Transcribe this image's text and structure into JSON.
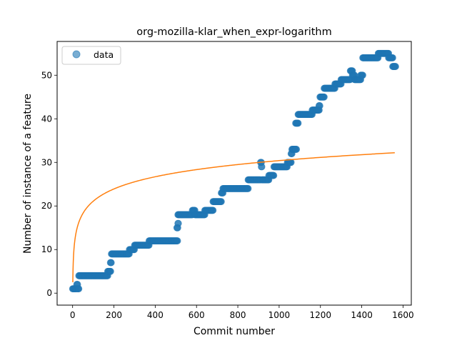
{
  "chart_data": {
    "type": "scatter",
    "title": "org-mozilla-klar_when_expr-logarithm",
    "xlabel": "Commit number",
    "ylabel": "Number of instance of a feature",
    "xlim": [
      -75,
      1640
    ],
    "ylim": [
      -2.75,
      57.75
    ],
    "xticks": [
      0,
      200,
      400,
      600,
      800,
      1000,
      1200,
      1400,
      1600
    ],
    "yticks": [
      0,
      10,
      20,
      30,
      40,
      50
    ],
    "grid": false,
    "legend": {
      "placement": "top-left",
      "entries": [
        "data"
      ]
    },
    "colors": {
      "data": "#1f77b4",
      "fit": "#ff7f0e"
    },
    "series": [
      {
        "name": "data",
        "kind": "scatter",
        "steps": [
          [
            0,
            18,
            1
          ],
          [
            20,
            24,
            2
          ],
          [
            24,
            30,
            1
          ],
          [
            30,
            170,
            4
          ],
          [
            170,
            185,
            5
          ],
          [
            183,
            188,
            7
          ],
          [
            188,
            275,
            9
          ],
          [
            275,
            300,
            10
          ],
          [
            300,
            370,
            11
          ],
          [
            370,
            508,
            12
          ],
          [
            505,
            509,
            15
          ],
          [
            510,
            512,
            16
          ],
          [
            510,
            580,
            18
          ],
          [
            580,
            592,
            19
          ],
          [
            592,
            640,
            18
          ],
          [
            640,
            680,
            19
          ],
          [
            680,
            720,
            21
          ],
          [
            720,
            728,
            23
          ],
          [
            728,
            850,
            24
          ],
          [
            850,
            910,
            26
          ],
          [
            910,
            914,
            30
          ],
          [
            914,
            916,
            29
          ],
          [
            916,
            950,
            26
          ],
          [
            950,
            975,
            27
          ],
          [
            975,
            1040,
            29
          ],
          [
            1040,
            1058,
            30
          ],
          [
            1058,
            1062,
            32
          ],
          [
            1062,
            1085,
            33
          ],
          [
            1080,
            1092,
            39
          ],
          [
            1092,
            1160,
            41
          ],
          [
            1160,
            1195,
            42
          ],
          [
            1193,
            1198,
            43
          ],
          [
            1198,
            1218,
            45
          ],
          [
            1218,
            1270,
            47
          ],
          [
            1270,
            1300,
            48
          ],
          [
            1300,
            1345,
            49
          ],
          [
            1345,
            1355,
            51
          ],
          [
            1355,
            1365,
            50
          ],
          [
            1365,
            1395,
            49
          ],
          [
            1395,
            1405,
            50
          ],
          [
            1405,
            1480,
            54
          ],
          [
            1480,
            1530,
            55
          ],
          [
            1530,
            1550,
            54
          ],
          [
            1550,
            1565,
            52
          ]
        ]
      },
      {
        "name": "",
        "kind": "line",
        "model": "a + b*ln(x)",
        "a": 2.5,
        "b": 4.04,
        "x_range": [
          1,
          1560
        ]
      }
    ]
  }
}
